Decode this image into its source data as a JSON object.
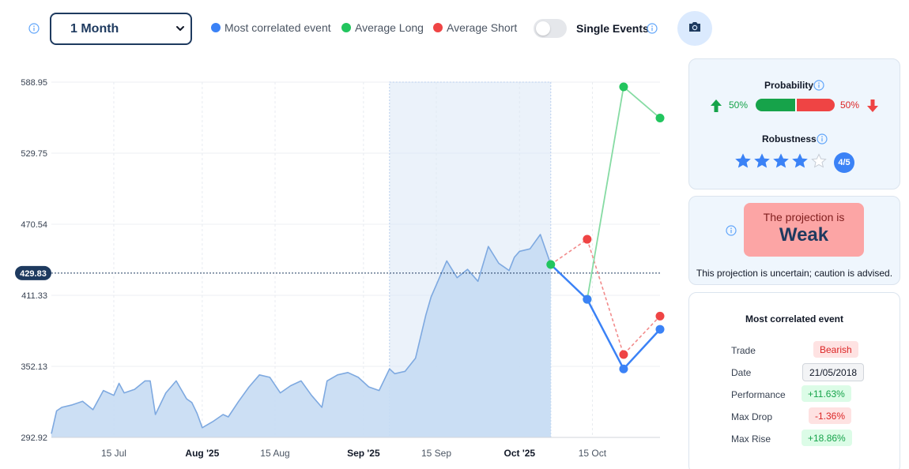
{
  "toolbar": {
    "period_value": "1 Month",
    "legend": {
      "most_correlated": "Most correlated event",
      "average_long": "Average Long",
      "average_short": "Average Short"
    },
    "single_events_label": "Single Events",
    "single_events_on": false
  },
  "colors": {
    "most_correlated": "#3b82f6",
    "average_long": "#22c55e",
    "average_short": "#ef4444",
    "area_fill": "#c7dbf3",
    "area_stroke": "#7ea9e0"
  },
  "chart_data": {
    "type": "area",
    "y_ticks": [
      "588.95",
      "529.75",
      "470.54",
      "411.33",
      "352.13",
      "292.92"
    ],
    "ylim": [
      292.92,
      588.95
    ],
    "x_ticks": [
      {
        "label": "15 Jul",
        "date": "2025-07-15",
        "bold": false
      },
      {
        "label": "Aug '25",
        "date": "2025-08-01",
        "bold": true
      },
      {
        "label": "15 Aug",
        "date": "2025-08-15",
        "bold": false
      },
      {
        "label": "Sep '25",
        "date": "2025-09-01",
        "bold": true
      },
      {
        "label": "15 Sep",
        "date": "2025-09-15",
        "bold": false
      },
      {
        "label": "Oct '25",
        "date": "2025-10-01",
        "bold": true
      },
      {
        "label": "15 Oct",
        "date": "2025-10-15",
        "bold": false
      }
    ],
    "xlim": [
      "2025-07-03",
      "2025-10-28"
    ],
    "current_value": "429.83",
    "grid": true,
    "highlight_range": [
      "2025-09-06",
      "2025-10-07"
    ],
    "price_series": {
      "dates": [
        "2025-07-03",
        "2025-07-04",
        "2025-07-05",
        "2025-07-07",
        "2025-07-09",
        "2025-07-11",
        "2025-07-13",
        "2025-07-15",
        "2025-07-16",
        "2025-07-17",
        "2025-07-19",
        "2025-07-21",
        "2025-07-22",
        "2025-07-23",
        "2025-07-25",
        "2025-07-27",
        "2025-07-29",
        "2025-07-30",
        "2025-07-31",
        "2025-08-01",
        "2025-08-03",
        "2025-08-05",
        "2025-08-06",
        "2025-08-08",
        "2025-08-10",
        "2025-08-12",
        "2025-08-14",
        "2025-08-16",
        "2025-08-18",
        "2025-08-20",
        "2025-08-22",
        "2025-08-24",
        "2025-08-25",
        "2025-08-27",
        "2025-08-29",
        "2025-08-31",
        "2025-09-02",
        "2025-09-04",
        "2025-09-06",
        "2025-09-07",
        "2025-09-09",
        "2025-09-11",
        "2025-09-13",
        "2025-09-14",
        "2025-09-15",
        "2025-09-17",
        "2025-09-19",
        "2025-09-21",
        "2025-09-23",
        "2025-09-25",
        "2025-09-27",
        "2025-09-29",
        "2025-09-30",
        "2025-10-01",
        "2025-10-03",
        "2025-10-05",
        "2025-10-07"
      ],
      "values": [
        296,
        315,
        318,
        320,
        323,
        316,
        332,
        328,
        338,
        330,
        333,
        340,
        340,
        312,
        330,
        340,
        325,
        322,
        313,
        301,
        306,
        312,
        310,
        323,
        335,
        345,
        343,
        330,
        336,
        340,
        328,
        318,
        340,
        345,
        347,
        343,
        335,
        332,
        350,
        346,
        348,
        359,
        395,
        410,
        420,
        440,
        426,
        433,
        423,
        452,
        438,
        432,
        443,
        448,
        450,
        462,
        437
      ]
    },
    "projection": {
      "dates": [
        "2025-10-07",
        "2025-10-14",
        "2025-10-21",
        "2025-10-28"
      ],
      "most_correlated": [
        437,
        408,
        350,
        383
      ],
      "average_long": [
        437,
        408,
        585,
        559
      ],
      "average_short": [
        437,
        458,
        362,
        394
      ]
    }
  },
  "probability": {
    "title": "Probability",
    "up_pct": "50%",
    "down_pct": "50%",
    "up_fraction": 0.5
  },
  "robustness": {
    "title": "Robustness",
    "filled_stars": 4,
    "total_stars": 5,
    "score": "4/5"
  },
  "projection": {
    "line1": "The projection is",
    "strength": "Weak",
    "note": "This projection is uncertain; caution is advised."
  },
  "event": {
    "title": "Most correlated event",
    "rows": [
      {
        "label": "Trade",
        "value": "Bearish",
        "style": "red"
      },
      {
        "label": "Date",
        "value": "21/05/2018",
        "style": "gray"
      },
      {
        "label": "Performance",
        "value": "+11.63%",
        "style": "green"
      },
      {
        "label": "Max Drop",
        "value": "-1.36%",
        "style": "red"
      },
      {
        "label": "Max Rise",
        "value": "+18.86%",
        "style": "green"
      }
    ]
  }
}
